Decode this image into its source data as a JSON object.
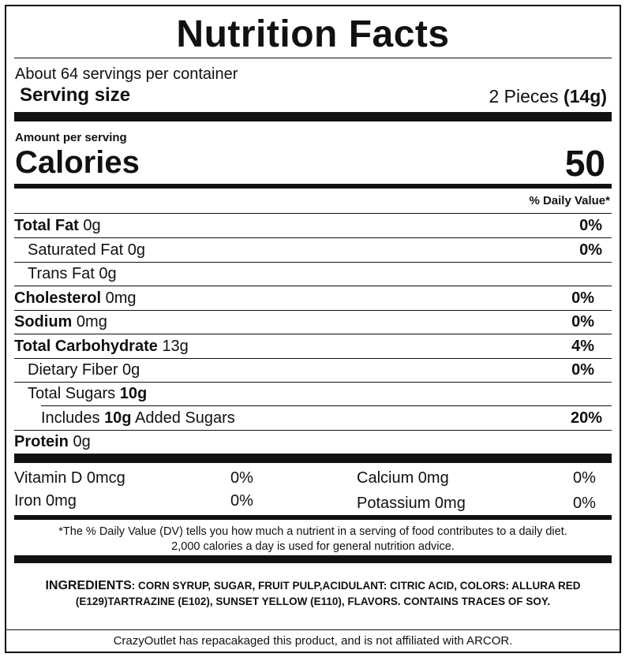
{
  "title": "Nutrition Facts",
  "servings_per_container": "About 64 servings per container",
  "serving_size": {
    "label": "Serving size",
    "value": "2 Pieces",
    "grams": "(14g)"
  },
  "amount_per_serving": "Amount per serving",
  "calories": {
    "label": "Calories",
    "value": "50"
  },
  "daily_value_header": "% Daily Value*",
  "nutrients": [
    {
      "name": "Total Fat",
      "amount": "0g",
      "dv": "0%"
    },
    {
      "name": "Saturated Fat",
      "amount": "0g",
      "dv": "0%"
    },
    {
      "name": "Trans Fat",
      "amount": "0g",
      "dv": ""
    },
    {
      "name": "Cholesterol",
      "amount": "0mg",
      "dv": "0%"
    },
    {
      "name": "Sodium",
      "amount": "0mg",
      "dv": "0%"
    },
    {
      "name": "Total Carbohydrate",
      "amount": "13g",
      "dv": "4%"
    },
    {
      "name": "Dietary Fiber",
      "amount": "0g",
      "dv": "0%"
    },
    {
      "name": "Total Sugars",
      "amount": "10g",
      "dv": ""
    },
    {
      "name_pre": "Includes",
      "amount": "10g",
      "name_post": "Added Sugars",
      "dv": "20%"
    },
    {
      "name": "Protein",
      "amount": "0g",
      "dv": ""
    }
  ],
  "vitamins": [
    {
      "name": "Vitamin D 0mcg",
      "dv": "0%"
    },
    {
      "name": "Calcium 0mg",
      "dv": "0%"
    },
    {
      "name": "Iron 0mg",
      "dv": "0%"
    },
    {
      "name": "Potassium 0mg",
      "dv": "0%"
    }
  ],
  "footnote": {
    "line1": "*The % Daily Value (DV) tells you how much a nutrient in a serving of food contributes to a daily diet.",
    "line2": "2,000 calories a day is used for general nutrition advice."
  },
  "ingredients": {
    "heading": "INGREDIENTS",
    "text": ": CORN SYRUP, SUGAR, FRUIT PULP,ACIDULANT: CITRIC ACID, COLORS: ALLURA RED (E129)TARTRAZINE (E102), SUNSET YELLOW (E110), FLAVORS. CONTAINS TRACES OF SOY."
  },
  "credit": "CrazyOutlet has repacakaged this product, and is not affiliated with ARCOR."
}
